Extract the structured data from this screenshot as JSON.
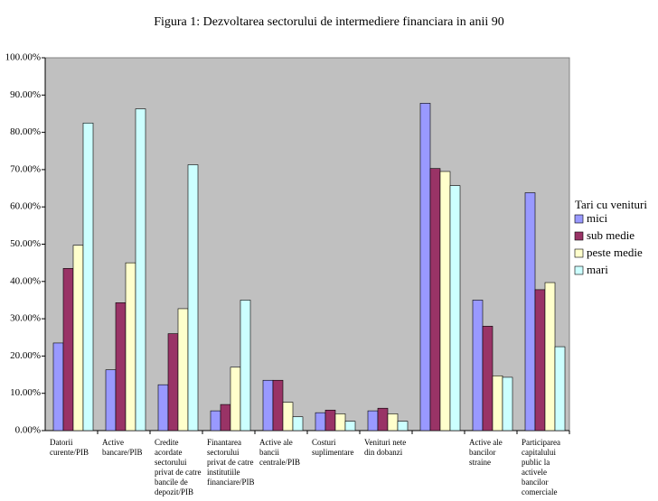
{
  "chart_data": {
    "type": "bar",
    "title": "Figura 1: Dezvoltarea sectorului de intermediere financiara in anii 90",
    "categories": [
      "Datorii curente/PIB",
      "Active bancare/PIB",
      "Credite acordate sectorului privat de catre bancile de depozit/PIB",
      "Finantarea sectorului privat de catre institutiile financiare/PIB",
      "Active ale bancii centrale/PIB",
      "Costuri suplimentare",
      "Venituri nete din dobanzi",
      null,
      "Active ale bancilor straine",
      "Participarea capitalului public la activele bancilor comerciale"
    ],
    "series": [
      {
        "name": "mici",
        "color": "#9999ff",
        "values": [
          23.5,
          16.3,
          12.3,
          5.3,
          13.5,
          4.8,
          5.3,
          87.8,
          35,
          63.8
        ]
      },
      {
        "name": "sub medie",
        "color": "#993366",
        "values": [
          43.5,
          34.3,
          26,
          7,
          13.5,
          5.5,
          6,
          70.3,
          28,
          37.8
        ]
      },
      {
        "name": "peste medie",
        "color": "#ffffcc",
        "values": [
          49.7,
          45,
          32.7,
          17,
          7.6,
          4.5,
          4.5,
          69.5,
          14.7,
          39.7
        ]
      },
      {
        "name": "mari",
        "color": "#ccffff",
        "values": [
          82.5,
          86.3,
          71.3,
          35,
          3.7,
          2.5,
          2.5,
          65.7,
          14.3,
          22.5
        ]
      }
    ],
    "legend_title": "Tari cu venituri",
    "legend": "right",
    "plot_background": "#c0c0c0",
    "ylim": [
      0,
      100
    ],
    "yticks": [
      {
        "value": 0,
        "label": "0.00%"
      },
      {
        "value": 10,
        "label": "10.00%"
      },
      {
        "value": 20,
        "label": "20.00%"
      },
      {
        "value": 30,
        "label": "30.00%"
      },
      {
        "value": 40,
        "label": "40.00%"
      },
      {
        "value": 50,
        "label": "50.00%"
      },
      {
        "value": 60,
        "label": "60.00%"
      },
      {
        "value": 70,
        "label": "70.00%"
      },
      {
        "value": 80,
        "label": "80.00%"
      },
      {
        "value": 90,
        "label": "90.00%"
      },
      {
        "value": 100,
        "label": "100.00%"
      }
    ]
  }
}
